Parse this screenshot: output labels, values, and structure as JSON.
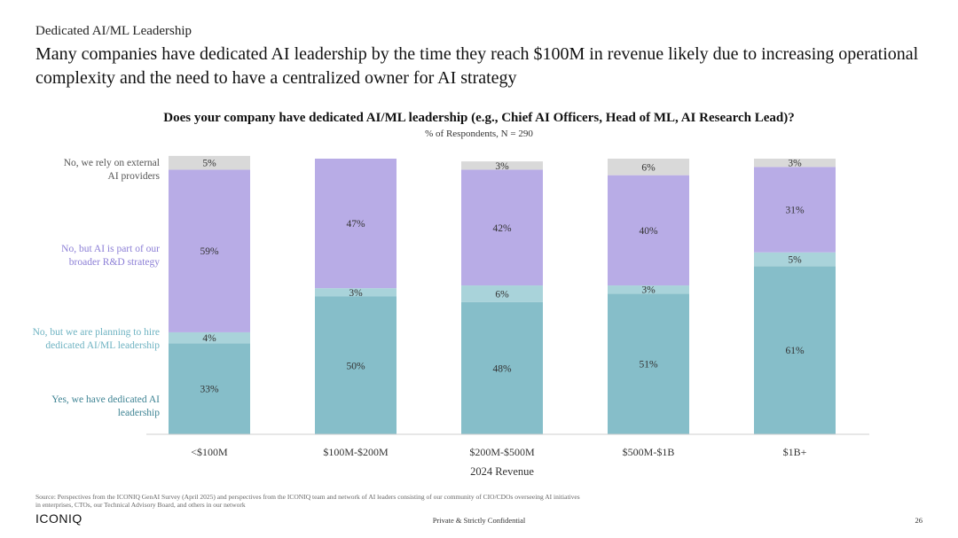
{
  "header": {
    "section_label": "Dedicated AI/ML Leadership",
    "headline": "Many companies have dedicated AI leadership by the time they reach $100M in revenue likely due to increasing operational complexity and the need to have a centralized owner for AI strategy"
  },
  "chart_data": {
    "type": "bar",
    "stacked": true,
    "title": "Does your company have dedicated AI/ML leadership (e.g., Chief AI Officers, Head of ML, AI Research Lead)?",
    "subtitle": "% of Respondents, N = 290",
    "xlabel": "2024 Revenue",
    "ylabel": "",
    "ylim": [
      0,
      100
    ],
    "categories": [
      "<$100M",
      "$100M-$200M",
      "$200M-$500M",
      "$500M-$1B",
      "$1B+"
    ],
    "series": [
      {
        "name": "Yes, we have dedicated AI leadership",
        "color": "#86bec9",
        "values": [
          33,
          50,
          48,
          51,
          61
        ],
        "labels": [
          "33%",
          "50%",
          "48%",
          "51%",
          "61%"
        ]
      },
      {
        "name": "No, but we are planning to hire dedicated AI/ML leadership",
        "color": "#a9d3da",
        "values": [
          4,
          3,
          6,
          3,
          5
        ],
        "labels": [
          "4%",
          "3%",
          "6%",
          "3%",
          "5%"
        ]
      },
      {
        "name": "No, but AI is part of our broader R&D strategy",
        "color": "#b8ace6",
        "values": [
          59,
          47,
          42,
          40,
          31
        ],
        "labels": [
          "59%",
          "47%",
          "42%",
          "40%",
          "31%"
        ]
      },
      {
        "name": "No, we rely on external AI providers",
        "color": "#d9d9d9",
        "values": [
          5,
          0,
          3,
          6,
          3
        ],
        "labels": [
          "5%",
          "",
          "3%",
          "6%",
          "3%"
        ]
      }
    ],
    "legend_position": "left",
    "grid": false
  },
  "legend": {
    "external": {
      "line1": "No, we rely on external",
      "line2": "AI providers",
      "color": "#555555"
    },
    "rd": {
      "line1": "No, but AI is part of our",
      "line2": "broader R&D strategy",
      "color": "#8c7fd6"
    },
    "planning": {
      "line1": "No, but we are planning to hire",
      "line2": "dedicated AI/ML leadership",
      "color": "#6fb3c2"
    },
    "yes": {
      "line1": "Yes, we have dedicated AI",
      "line2": "leadership",
      "color": "#3f8494"
    }
  },
  "footer": {
    "source": "Source: Perspectives from the ICONIQ GenAI Survey (April 2025) and perspectives from the ICONIQ team and network of AI leaders consisting of our community of CIO/CDOs overseeing AI initiatives in enterprises, CTOs, our Technical Advisory Board, and others in our network",
    "logo": "ICONIQ",
    "confidential": "Private & Strictly Confidential",
    "page_number": "26"
  }
}
